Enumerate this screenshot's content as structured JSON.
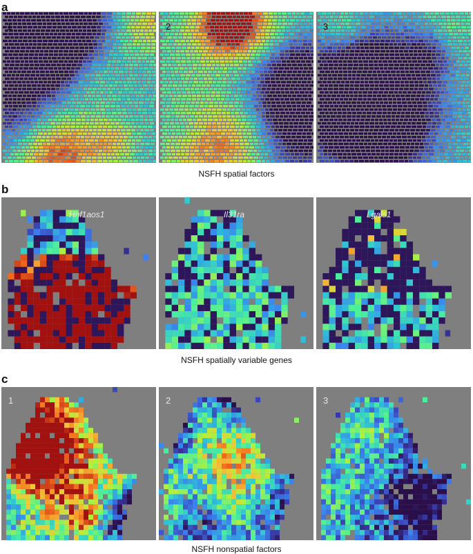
{
  "figure": {
    "section_a": {
      "letter": "a",
      "caption": "NSFH spatial factors",
      "panels": [
        "1",
        "2",
        "3"
      ]
    },
    "section_b": {
      "letter": "b",
      "caption": "NSFH spatially variable genes",
      "genes": [
        "Hnf1aos1",
        "Il31ra",
        "Lgals1"
      ]
    },
    "section_c": {
      "letter": "c",
      "caption": "NSFH nonspatial factors",
      "panels": [
        "1",
        "2",
        "3"
      ]
    }
  },
  "colors": {
    "background_panel": "#7f7f7f",
    "colormap": [
      "#2b0f4a",
      "#3a3fb0",
      "#3b82f0",
      "#2fc3d6",
      "#4df09a",
      "#b2f03c",
      "#f5c537",
      "#f2661d",
      "#a01010"
    ]
  }
}
